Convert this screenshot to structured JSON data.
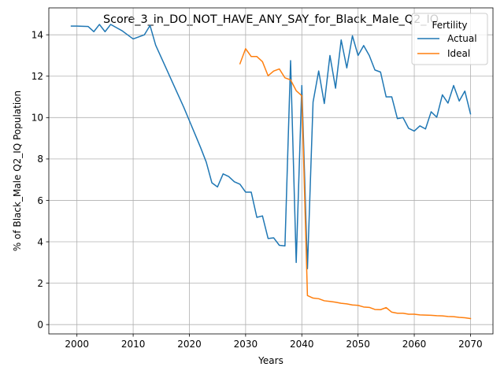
{
  "chart_data": {
    "type": "line",
    "title": "Score_3_in_DO_NOT_HAVE_ANY_SAY_for_Black_Male_Q2_IQ",
    "xlabel": "Years",
    "ylabel": "% of Black_Male Q2_IQ Population",
    "xlim": [
      1995,
      2074
    ],
    "ylim": [
      -0.45,
      15.3
    ],
    "xticks": [
      2000,
      2010,
      2020,
      2030,
      2040,
      2050,
      2060,
      2070
    ],
    "yticks": [
      0,
      2,
      4,
      6,
      8,
      10,
      12,
      14
    ],
    "grid": true,
    "legend": {
      "title": "Fertility",
      "placement": "top-right"
    },
    "series": [
      {
        "name": "Actual",
        "color": "#1f77b4",
        "x": [
          1999,
          2000,
          2001,
          2002,
          2003,
          2004,
          2005,
          2006,
          2007,
          2008,
          2009,
          2010,
          2011,
          2012,
          2013,
          2014,
          2015,
          2016,
          2017,
          2018,
          2019,
          2020,
          2021,
          2022,
          2023,
          2024,
          2025,
          2026,
          2027,
          2028,
          2029,
          2030,
          2031,
          2032,
          2033,
          2034,
          2035,
          2036,
          2037,
          2038,
          2039,
          2040,
          2041,
          2042,
          2043,
          2044,
          2045,
          2046,
          2047,
          2048,
          2049,
          2050,
          2051,
          2052,
          2053,
          2054,
          2055,
          2056,
          2057,
          2058,
          2059,
          2060,
          2061,
          2062,
          2063,
          2064,
          2065,
          2066,
          2067,
          2068,
          2069,
          2070
        ],
        "y": [
          14.42,
          14.42,
          14.41,
          14.4,
          14.15,
          14.5,
          14.15,
          14.5,
          14.35,
          14.2,
          14.0,
          13.8,
          13.9,
          14.0,
          14.45,
          13.5,
          12.9,
          12.3,
          11.7,
          11.1,
          10.5,
          9.85,
          9.2,
          8.55,
          7.85,
          6.85,
          6.65,
          7.28,
          7.15,
          6.9,
          6.78,
          6.4,
          6.4,
          5.18,
          5.25,
          4.16,
          4.19,
          3.83,
          3.8,
          12.75,
          3.0,
          11.55,
          2.7,
          10.75,
          12.25,
          10.68,
          13.0,
          11.42,
          13.75,
          12.4,
          13.95,
          13.0,
          13.48,
          13.0,
          12.3,
          12.2,
          11.0,
          11.0,
          9.95,
          10.0,
          9.48,
          9.35,
          9.6,
          9.45,
          10.28,
          10.02,
          11.1,
          10.7,
          11.55,
          10.8,
          11.28,
          10.18
        ]
      },
      {
        "name": "Ideal",
        "color": "#ff7f0e",
        "x": [
          2029,
          2030,
          2031,
          2032,
          2033,
          2034,
          2035,
          2036,
          2037,
          2038,
          2039,
          2040,
          2041,
          2042,
          2043,
          2044,
          2045,
          2046,
          2047,
          2048,
          2049,
          2050,
          2051,
          2052,
          2053,
          2054,
          2055,
          2056,
          2057,
          2058,
          2059,
          2060,
          2061,
          2062,
          2063,
          2064,
          2065,
          2066,
          2067,
          2068,
          2069,
          2070
        ],
        "y": [
          12.6,
          13.33,
          12.95,
          12.95,
          12.7,
          12.02,
          12.25,
          12.35,
          11.92,
          11.82,
          11.3,
          11.05,
          1.4,
          1.28,
          1.25,
          1.15,
          1.12,
          1.08,
          1.03,
          1.0,
          0.95,
          0.93,
          0.85,
          0.83,
          0.73,
          0.72,
          0.82,
          0.6,
          0.55,
          0.55,
          0.5,
          0.5,
          0.47,
          0.46,
          0.45,
          0.43,
          0.42,
          0.39,
          0.38,
          0.35,
          0.33,
          0.29
        ]
      }
    ]
  }
}
